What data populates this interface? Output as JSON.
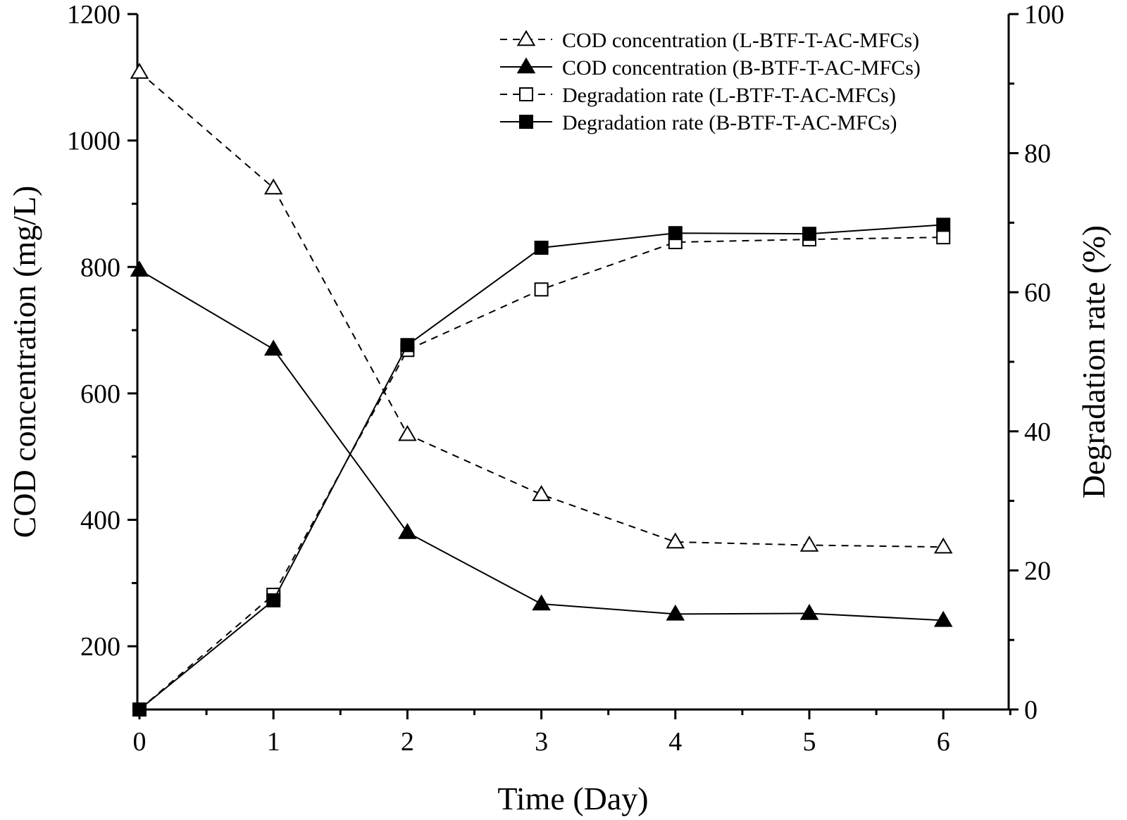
{
  "chart_data": {
    "type": "line",
    "title": "",
    "xlabel": "Time (Day)",
    "ylabel_left": "COD concentration (mg/L)",
    "ylabel_right": "Degradation rate (%)",
    "x": [
      0,
      1,
      2,
      3,
      4,
      5,
      6
    ],
    "xlim": [
      0,
      6.5
    ],
    "ylim_left": [
      100,
      1200
    ],
    "ylim_right": [
      0,
      100
    ],
    "xticks": [
      0,
      1,
      2,
      3,
      4,
      5,
      6
    ],
    "xticks_minor": [
      0.5,
      1.5,
      2.5,
      3.5,
      4.5,
      5.5,
      6.5
    ],
    "yticks_left": [
      200,
      400,
      600,
      800,
      1000,
      1200
    ],
    "yticks_left_minor": [
      300,
      500,
      700,
      900,
      1100
    ],
    "yticks_right": [
      0,
      20,
      40,
      60,
      80,
      100
    ],
    "yticks_right_minor": [
      10,
      30,
      50,
      70,
      90
    ],
    "grid": false,
    "legend_position": "top-right",
    "series": [
      {
        "name": "COD concentration (L-BTF-T-AC-MFCs)",
        "axis": "left",
        "line": "dashed",
        "marker": "triangle",
        "filled": false,
        "values": [
          1108,
          925,
          535,
          440,
          365,
          360,
          357
        ]
      },
      {
        "name": "COD concentration (B-BTF-T-AC-MFCs)",
        "axis": "left",
        "line": "solid",
        "marker": "triangle",
        "filled": true,
        "values": [
          795,
          670,
          380,
          267,
          251,
          252,
          241
        ]
      },
      {
        "name": "Degradation rate (L-BTF-T-AC-MFCs)",
        "axis": "right",
        "line": "dashed",
        "marker": "square",
        "filled": false,
        "values": [
          0,
          16.5,
          51.7,
          60.4,
          67.2,
          67.6,
          67.9
        ]
      },
      {
        "name": "Degradation rate (B-BTF-T-AC-MFCs)",
        "axis": "right",
        "line": "solid",
        "marker": "square",
        "filled": true,
        "values": [
          0,
          15.7,
          52.4,
          66.4,
          68.5,
          68.4,
          69.7
        ]
      }
    ]
  }
}
